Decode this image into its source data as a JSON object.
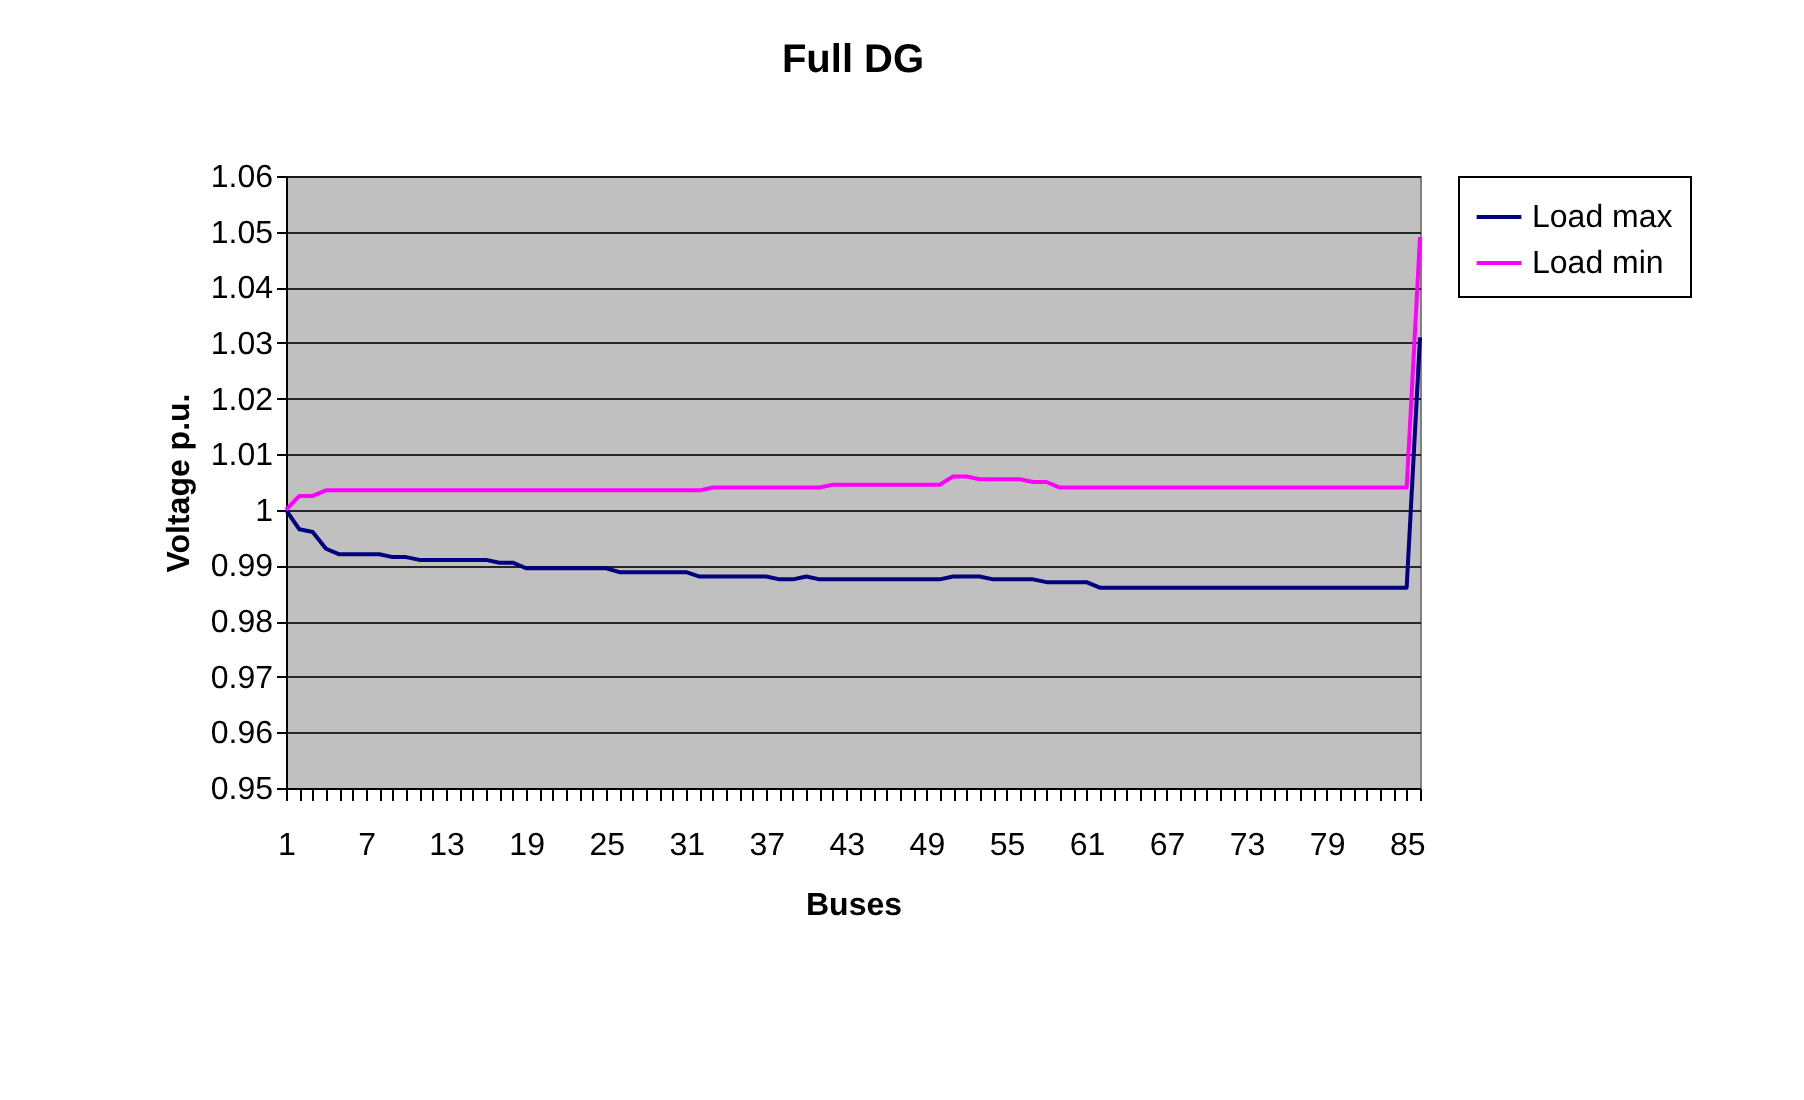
{
  "chart_data": {
    "type": "line",
    "title": "Full DG",
    "xlabel": "Buses",
    "ylabel": "Voltage p.u.",
    "categories": [
      "1",
      null,
      null,
      null,
      null,
      null,
      "7",
      null,
      null,
      null,
      null,
      null,
      "13",
      null,
      null,
      null,
      null,
      null,
      "19",
      null,
      null,
      null,
      null,
      null,
      "25",
      null,
      null,
      null,
      null,
      null,
      "31",
      null,
      null,
      null,
      null,
      null,
      "37",
      null,
      null,
      null,
      null,
      null,
      "43",
      null,
      null,
      null,
      null,
      null,
      "49",
      null,
      null,
      null,
      null,
      null,
      "55",
      null,
      null,
      null,
      null,
      null,
      "61",
      null,
      null,
      null,
      null,
      null,
      "67",
      null,
      null,
      null,
      null,
      null,
      "73",
      null,
      null,
      null,
      null,
      null,
      "79",
      null,
      null,
      null,
      null,
      null,
      "85",
      null
    ],
    "series": [
      {
        "name": "Load max",
        "color": "#000080",
        "values": [
          1.0,
          0.9965,
          0.996,
          0.993,
          0.992,
          0.992,
          0.992,
          0.992,
          0.9915,
          0.9915,
          0.991,
          0.991,
          0.991,
          0.991,
          0.991,
          0.991,
          0.9905,
          0.9905,
          0.9895,
          0.9895,
          0.9895,
          0.9895,
          0.9895,
          0.9895,
          0.9895,
          0.9888,
          0.9888,
          0.9888,
          0.9888,
          0.9888,
          0.9888,
          0.988,
          0.988,
          0.988,
          0.988,
          0.988,
          0.988,
          0.9875,
          0.9875,
          0.988,
          0.9875,
          0.9875,
          0.9875,
          0.9875,
          0.9875,
          0.9875,
          0.9875,
          0.9875,
          0.9875,
          0.9875,
          0.988,
          0.988,
          0.988,
          0.9875,
          0.9875,
          0.9875,
          0.9875,
          0.987,
          0.987,
          0.987,
          0.987,
          0.986,
          0.986,
          0.986,
          0.986,
          0.986,
          0.986,
          0.986,
          0.986,
          0.986,
          0.986,
          0.986,
          0.986,
          0.986,
          0.986,
          0.986,
          0.986,
          0.986,
          0.986,
          0.986,
          0.986,
          0.986,
          0.986,
          0.986,
          0.986,
          1.031
        ]
      },
      {
        "name": "Load min",
        "color": "#ff00ff",
        "values": [
          1.0,
          1.0025,
          1.0025,
          1.0035,
          1.0035,
          1.0035,
          1.0035,
          1.0035,
          1.0035,
          1.0035,
          1.0035,
          1.0035,
          1.0035,
          1.0035,
          1.0035,
          1.0035,
          1.0035,
          1.0035,
          1.0035,
          1.0035,
          1.0035,
          1.0035,
          1.0035,
          1.0035,
          1.0035,
          1.0035,
          1.0035,
          1.0035,
          1.0035,
          1.0035,
          1.0035,
          1.0035,
          1.004,
          1.004,
          1.004,
          1.004,
          1.004,
          1.004,
          1.004,
          1.004,
          1.004,
          1.0045,
          1.0045,
          1.0045,
          1.0045,
          1.0045,
          1.0045,
          1.0045,
          1.0045,
          1.0045,
          1.006,
          1.006,
          1.0055,
          1.0055,
          1.0055,
          1.0055,
          1.005,
          1.005,
          1.004,
          1.004,
          1.004,
          1.004,
          1.004,
          1.004,
          1.004,
          1.004,
          1.004,
          1.004,
          1.004,
          1.004,
          1.004,
          1.004,
          1.004,
          1.004,
          1.004,
          1.004,
          1.004,
          1.004,
          1.004,
          1.004,
          1.004,
          1.004,
          1.004,
          1.004,
          1.004,
          1.049
        ]
      }
    ],
    "ylim": [
      0.95,
      1.06
    ],
    "yticks": [
      0.95,
      0.96,
      0.97,
      0.98,
      0.99,
      {
        "value": 1.0,
        "label": "1"
      },
      1.01,
      1.02,
      1.03,
      1.04,
      1.05,
      1.06
    ],
    "grid": "y",
    "legend": "right",
    "line_style": "solid",
    "marker": "none"
  }
}
